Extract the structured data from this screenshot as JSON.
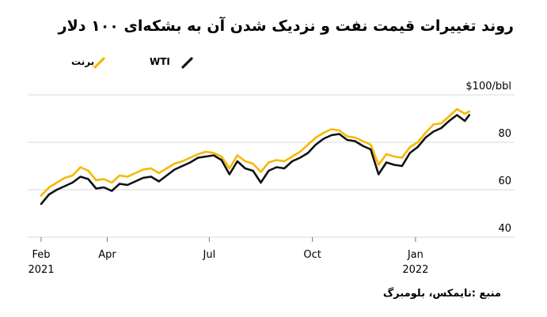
{
  "title": "روند تغییرات قیمت نفت و نزدیک شدن آن به بشکه‌ای ۱۰۰ دلار",
  "source": "منبع :نایمکس، بلومبرگ",
  "colors": {
    "brent": "#f5b800",
    "wti": "#111111",
    "grid": "#d8d8d8",
    "axis": "#777777"
  },
  "chart_data": {
    "type": "line",
    "title": "روند تغییرات قیمت نفت و نزدیک شدن آن به بشکه‌ای ۱۰۰ دلار",
    "xlabel": "",
    "ylabel": "$100/bbl",
    "ylim": [
      40,
      100
    ],
    "yticks": [
      {
        "value": 100,
        "label": "$100/bbl"
      },
      {
        "value": 80,
        "label": "80"
      },
      {
        "value": 60,
        "label": "60"
      },
      {
        "value": 40,
        "label": "40"
      }
    ],
    "xticks": [
      {
        "date": "2021-02-01",
        "label": "Feb",
        "sublabel": "2021"
      },
      {
        "date": "2021-04-01",
        "label": "Apr",
        "sublabel": ""
      },
      {
        "date": "2021-07-01",
        "label": "Jul",
        "sublabel": ""
      },
      {
        "date": "2021-10-01",
        "label": "Oct",
        "sublabel": ""
      },
      {
        "date": "2022-01-01",
        "label": "Jan",
        "sublabel": "2022"
      }
    ],
    "xlim": [
      "2021-02-01",
      "2022-02-28"
    ],
    "grid": true,
    "legend_placement": "top-left",
    "series": [
      {
        "name": "برنت",
        "color": "#f5b800",
        "points": [
          [
            "2021-02-01",
            57.5
          ],
          [
            "2021-02-08",
            61
          ],
          [
            "2021-02-15",
            63
          ],
          [
            "2021-02-22",
            65
          ],
          [
            "2021-03-01",
            66
          ],
          [
            "2021-03-08",
            69.5
          ],
          [
            "2021-03-15",
            68
          ],
          [
            "2021-03-22",
            64
          ],
          [
            "2021-03-29",
            64.5
          ],
          [
            "2021-04-05",
            63
          ],
          [
            "2021-04-12",
            66
          ],
          [
            "2021-04-19",
            65.5
          ],
          [
            "2021-04-26",
            67
          ],
          [
            "2021-05-03",
            68.5
          ],
          [
            "2021-05-10",
            69
          ],
          [
            "2021-05-17",
            67
          ],
          [
            "2021-05-24",
            69
          ],
          [
            "2021-05-31",
            71
          ],
          [
            "2021-06-07",
            72
          ],
          [
            "2021-06-14",
            73.5
          ],
          [
            "2021-06-21",
            75
          ],
          [
            "2021-06-28",
            76
          ],
          [
            "2021-07-05",
            75.5
          ],
          [
            "2021-07-12",
            74
          ],
          [
            "2021-07-19",
            69
          ],
          [
            "2021-07-26",
            74.5
          ],
          [
            "2021-08-02",
            72
          ],
          [
            "2021-08-09",
            71
          ],
          [
            "2021-08-16",
            67.5
          ],
          [
            "2021-08-23",
            71.5
          ],
          [
            "2021-08-30",
            72.5
          ],
          [
            "2021-09-06",
            72
          ],
          [
            "2021-09-13",
            74
          ],
          [
            "2021-09-20",
            76
          ],
          [
            "2021-09-27",
            79
          ],
          [
            "2021-10-04",
            82
          ],
          [
            "2021-10-11",
            84
          ],
          [
            "2021-10-18",
            85.5
          ],
          [
            "2021-10-25",
            85
          ],
          [
            "2021-11-01",
            82.5
          ],
          [
            "2021-11-08",
            82
          ],
          [
            "2021-11-15",
            80.5
          ],
          [
            "2021-11-22",
            79
          ],
          [
            "2021-11-29",
            70.5
          ],
          [
            "2021-12-06",
            75
          ],
          [
            "2021-12-13",
            74
          ],
          [
            "2021-12-20",
            73.5
          ],
          [
            "2021-12-27",
            78
          ],
          [
            "2022-01-03",
            80
          ],
          [
            "2022-01-10",
            84
          ],
          [
            "2022-01-17",
            87.5
          ],
          [
            "2022-01-24",
            88
          ],
          [
            "2022-01-31",
            91
          ],
          [
            "2022-02-07",
            94
          ],
          [
            "2022-02-14",
            92
          ],
          [
            "2022-02-18",
            93
          ]
        ]
      },
      {
        "name": "WTI",
        "color": "#111111",
        "points": [
          [
            "2021-02-01",
            54
          ],
          [
            "2021-02-08",
            58
          ],
          [
            "2021-02-15",
            60
          ],
          [
            "2021-02-22",
            61.5
          ],
          [
            "2021-03-01",
            63
          ],
          [
            "2021-03-08",
            65.5
          ],
          [
            "2021-03-15",
            64.5
          ],
          [
            "2021-03-22",
            60.5
          ],
          [
            "2021-03-29",
            61
          ],
          [
            "2021-04-05",
            59.5
          ],
          [
            "2021-04-12",
            62.5
          ],
          [
            "2021-04-19",
            62
          ],
          [
            "2021-04-26",
            63.5
          ],
          [
            "2021-05-03",
            65
          ],
          [
            "2021-05-10",
            65.5
          ],
          [
            "2021-05-17",
            63.5
          ],
          [
            "2021-05-24",
            66
          ],
          [
            "2021-05-31",
            68.5
          ],
          [
            "2021-06-07",
            70
          ],
          [
            "2021-06-14",
            71.5
          ],
          [
            "2021-06-21",
            73.5
          ],
          [
            "2021-06-28",
            74
          ],
          [
            "2021-07-05",
            74.5
          ],
          [
            "2021-07-12",
            72.5
          ],
          [
            "2021-07-19",
            66.5
          ],
          [
            "2021-07-26",
            72
          ],
          [
            "2021-08-02",
            69
          ],
          [
            "2021-08-09",
            68
          ],
          [
            "2021-08-16",
            63
          ],
          [
            "2021-08-23",
            68
          ],
          [
            "2021-08-30",
            69.5
          ],
          [
            "2021-09-06",
            69
          ],
          [
            "2021-09-13",
            72
          ],
          [
            "2021-09-20",
            73.5
          ],
          [
            "2021-09-27",
            75.5
          ],
          [
            "2021-10-04",
            79
          ],
          [
            "2021-10-11",
            81.5
          ],
          [
            "2021-10-18",
            83
          ],
          [
            "2021-10-25",
            83.5
          ],
          [
            "2021-11-01",
            81
          ],
          [
            "2021-11-08",
            80.5
          ],
          [
            "2021-11-15",
            78.5
          ],
          [
            "2021-11-22",
            77
          ],
          [
            "2021-11-29",
            66.5
          ],
          [
            "2021-12-06",
            71.5
          ],
          [
            "2021-12-13",
            70.5
          ],
          [
            "2021-12-20",
            70
          ],
          [
            "2021-12-27",
            75.5
          ],
          [
            "2022-01-03",
            78
          ],
          [
            "2022-01-10",
            82
          ],
          [
            "2022-01-17",
            84.5
          ],
          [
            "2022-01-24",
            86
          ],
          [
            "2022-01-31",
            89
          ],
          [
            "2022-02-07",
            91.5
          ],
          [
            "2022-02-14",
            89
          ],
          [
            "2022-02-18",
            91.5
          ]
        ]
      }
    ]
  }
}
